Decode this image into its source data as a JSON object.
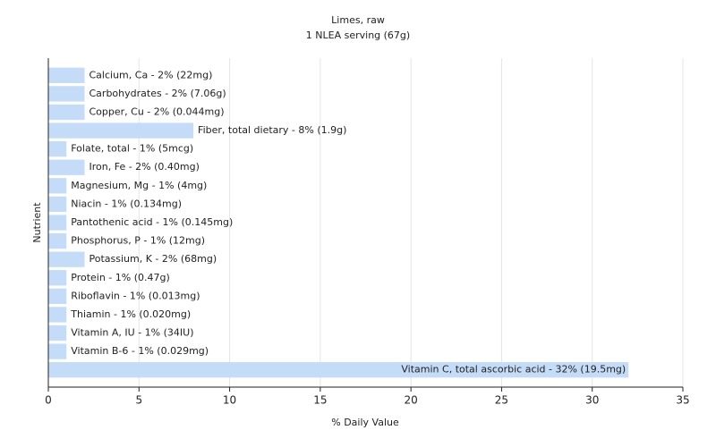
{
  "chart_data": {
    "type": "bar",
    "orientation": "horizontal",
    "title": "Limes, raw",
    "subtitle": "1 NLEA serving (67g)",
    "x_label": "% Daily Value",
    "y_label": "Nutrient",
    "categories": [
      "Calcium, Ca - 2% (22mg)",
      "Carbohydrates - 2% (7.06g)",
      "Copper, Cu - 2% (0.044mg)",
      "Fiber, total dietary - 8% (1.9g)",
      "Folate, total - 1% (5mcg)",
      "Iron, Fe - 2% (0.40mg)",
      "Magnesium, Mg - 1% (4mg)",
      "Niacin - 1% (0.134mg)",
      "Pantothenic acid - 1% (0.145mg)",
      "Phosphorus, P - 1% (12mg)",
      "Potassium, K - 2% (68mg)",
      "Protein - 1% (0.47g)",
      "Riboflavin - 1% (0.013mg)",
      "Thiamin - 1% (0.020mg)",
      "Vitamin A, IU - 1% (34IU)",
      "Vitamin B-6 - 1% (0.029mg)",
      "Vitamin C, total ascorbic acid - 32% (19.5mg)"
    ],
    "values": [
      2,
      2,
      2,
      8,
      1,
      2,
      1,
      1,
      1,
      1,
      2,
      1,
      1,
      1,
      1,
      1,
      32
    ],
    "color": "#c4dcf7",
    "xlim": [
      0,
      35
    ],
    "xticks": [
      0,
      5,
      10,
      15,
      20,
      25,
      30,
      35
    ],
    "grid": true
  }
}
